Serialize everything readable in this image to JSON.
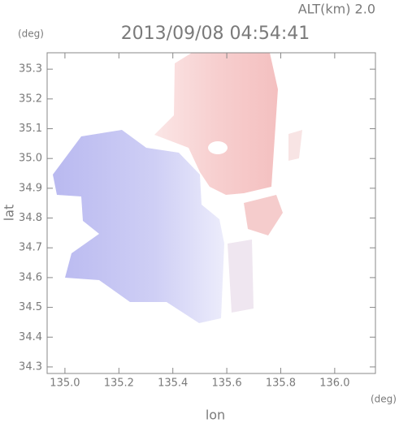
{
  "chart_data": {
    "type": "map",
    "title": "2013/09/08 04:54:41",
    "subtitle": "ALT(km) 2.0",
    "x_label": "lon",
    "y_label": "lat",
    "x_unit": "(deg)",
    "y_unit": "(deg)",
    "xlim": [
      134.934,
      136.151
    ],
    "ylim": [
      34.278,
      35.355
    ],
    "xticks": [
      {
        "value": 135,
        "label": "135.0"
      },
      135.2,
      135.4,
      135.6,
      135.8,
      {
        "value": 136,
        "label": "136.0"
      }
    ],
    "yticks": [
      34.3,
      34.4,
      34.5,
      34.6,
      34.7,
      34.8,
      34.9,
      {
        "value": 35,
        "label": "35.0"
      },
      35.1,
      35.2,
      35.3
    ]
  }
}
